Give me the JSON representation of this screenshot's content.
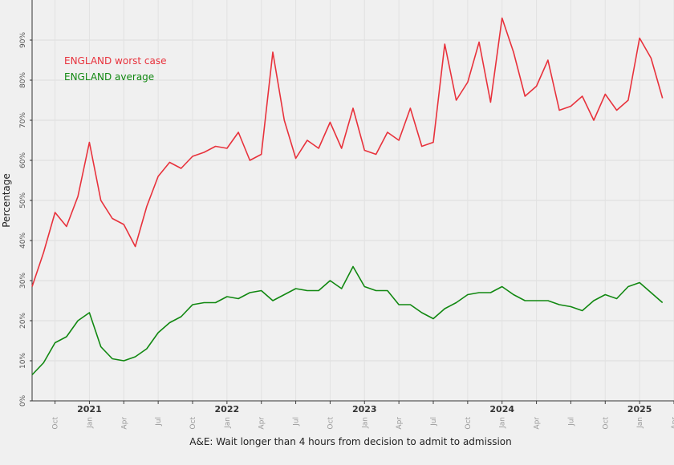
{
  "chart_data": {
    "type": "line",
    "xlabel": "A&E: Wait longer than 4 hours from decision to admit to admission",
    "ylabel": "Percentage",
    "ylim": [
      0,
      100
    ],
    "yticks": [
      "0%",
      "10%",
      "20%",
      "30%",
      "40%",
      "50%",
      "60%",
      "70%",
      "80%",
      "90%"
    ],
    "xlim": [
      "2020-08",
      "2025-04"
    ],
    "month_ticks": [
      {
        "date": "2020-10",
        "label": "Oct"
      },
      {
        "date": "2021-01",
        "label": "Jan"
      },
      {
        "date": "2021-04",
        "label": "Apr"
      },
      {
        "date": "2021-07",
        "label": "Jul"
      },
      {
        "date": "2021-10",
        "label": "Oct"
      },
      {
        "date": "2022-01",
        "label": "Jan"
      },
      {
        "date": "2022-04",
        "label": "Apr"
      },
      {
        "date": "2022-07",
        "label": "Jul"
      },
      {
        "date": "2022-10",
        "label": "Oct"
      },
      {
        "date": "2023-01",
        "label": "Jan"
      },
      {
        "date": "2023-04",
        "label": "Apr"
      },
      {
        "date": "2023-07",
        "label": "Jul"
      },
      {
        "date": "2023-10",
        "label": "Oct"
      },
      {
        "date": "2024-01",
        "label": "Jan"
      },
      {
        "date": "2024-04",
        "label": "Apr"
      },
      {
        "date": "2024-07",
        "label": "Jul"
      },
      {
        "date": "2024-10",
        "label": "Oct"
      },
      {
        "date": "2025-01",
        "label": "Jan"
      },
      {
        "date": "2025-04",
        "label": "Apr"
      }
    ],
    "year_ticks": [
      {
        "date": "2021-01",
        "label": "2021"
      },
      {
        "date": "2022-01",
        "label": "2022"
      },
      {
        "date": "2023-01",
        "label": "2023"
      },
      {
        "date": "2024-01",
        "label": "2024"
      },
      {
        "date": "2025-01",
        "label": "2025"
      }
    ],
    "grid": true,
    "legend_position": "top-left",
    "x": [
      "2020-08",
      "2020-09",
      "2020-10",
      "2020-11",
      "2020-12",
      "2021-01",
      "2021-02",
      "2021-03",
      "2021-04",
      "2021-05",
      "2021-06",
      "2021-07",
      "2021-08",
      "2021-09",
      "2021-10",
      "2021-11",
      "2021-12",
      "2022-01",
      "2022-02",
      "2022-03",
      "2022-04",
      "2022-05",
      "2022-06",
      "2022-07",
      "2022-08",
      "2022-09",
      "2022-10",
      "2022-11",
      "2022-12",
      "2023-01",
      "2023-02",
      "2023-03",
      "2023-04",
      "2023-05",
      "2023-06",
      "2023-07",
      "2023-08",
      "2023-09",
      "2023-10",
      "2023-11",
      "2023-12",
      "2024-01",
      "2024-02",
      "2024-03",
      "2024-04",
      "2024-05",
      "2024-06",
      "2024-07",
      "2024-08",
      "2024-09",
      "2024-10",
      "2024-11",
      "2024-12",
      "2025-01",
      "2025-02",
      "2025-03"
    ],
    "series": [
      {
        "name": "ENGLAND worst case",
        "color": "#e8323c",
        "values": [
          28.5,
          37,
          47,
          43.5,
          51,
          64.5,
          50,
          45.5,
          44,
          38.5,
          48.5,
          56,
          59.5,
          58,
          61,
          62,
          63.5,
          63,
          67,
          60,
          61.5,
          87,
          70,
          60.5,
          65,
          63,
          69.5,
          63,
          73,
          62.5,
          61.5,
          67,
          65,
          73,
          63.5,
          64.5,
          89,
          75,
          79.5,
          89.5,
          74.5,
          95.5,
          87,
          76,
          78.5,
          85,
          72.5,
          73.5,
          76,
          70,
          76.5,
          72.5,
          75,
          90.5,
          85.5,
          75.5
        ]
      },
      {
        "name": "ENGLAND average",
        "color": "#118811",
        "values": [
          6.5,
          9.5,
          14.5,
          16,
          20,
          22,
          13.5,
          10.5,
          10,
          11,
          13,
          17,
          19.5,
          21,
          24,
          24.5,
          24.5,
          26,
          25.5,
          27,
          27.5,
          25,
          26.5,
          28,
          27.5,
          27.5,
          30,
          28,
          33.5,
          28.5,
          27.5,
          27.5,
          24,
          24,
          22,
          20.5,
          23,
          24.5,
          26.5,
          27,
          27,
          28.5,
          26.5,
          25,
          25,
          25,
          24,
          23.5,
          22.5,
          25,
          26.5,
          25.5,
          28.5,
          29.5,
          27,
          24.5
        ]
      }
    ]
  }
}
